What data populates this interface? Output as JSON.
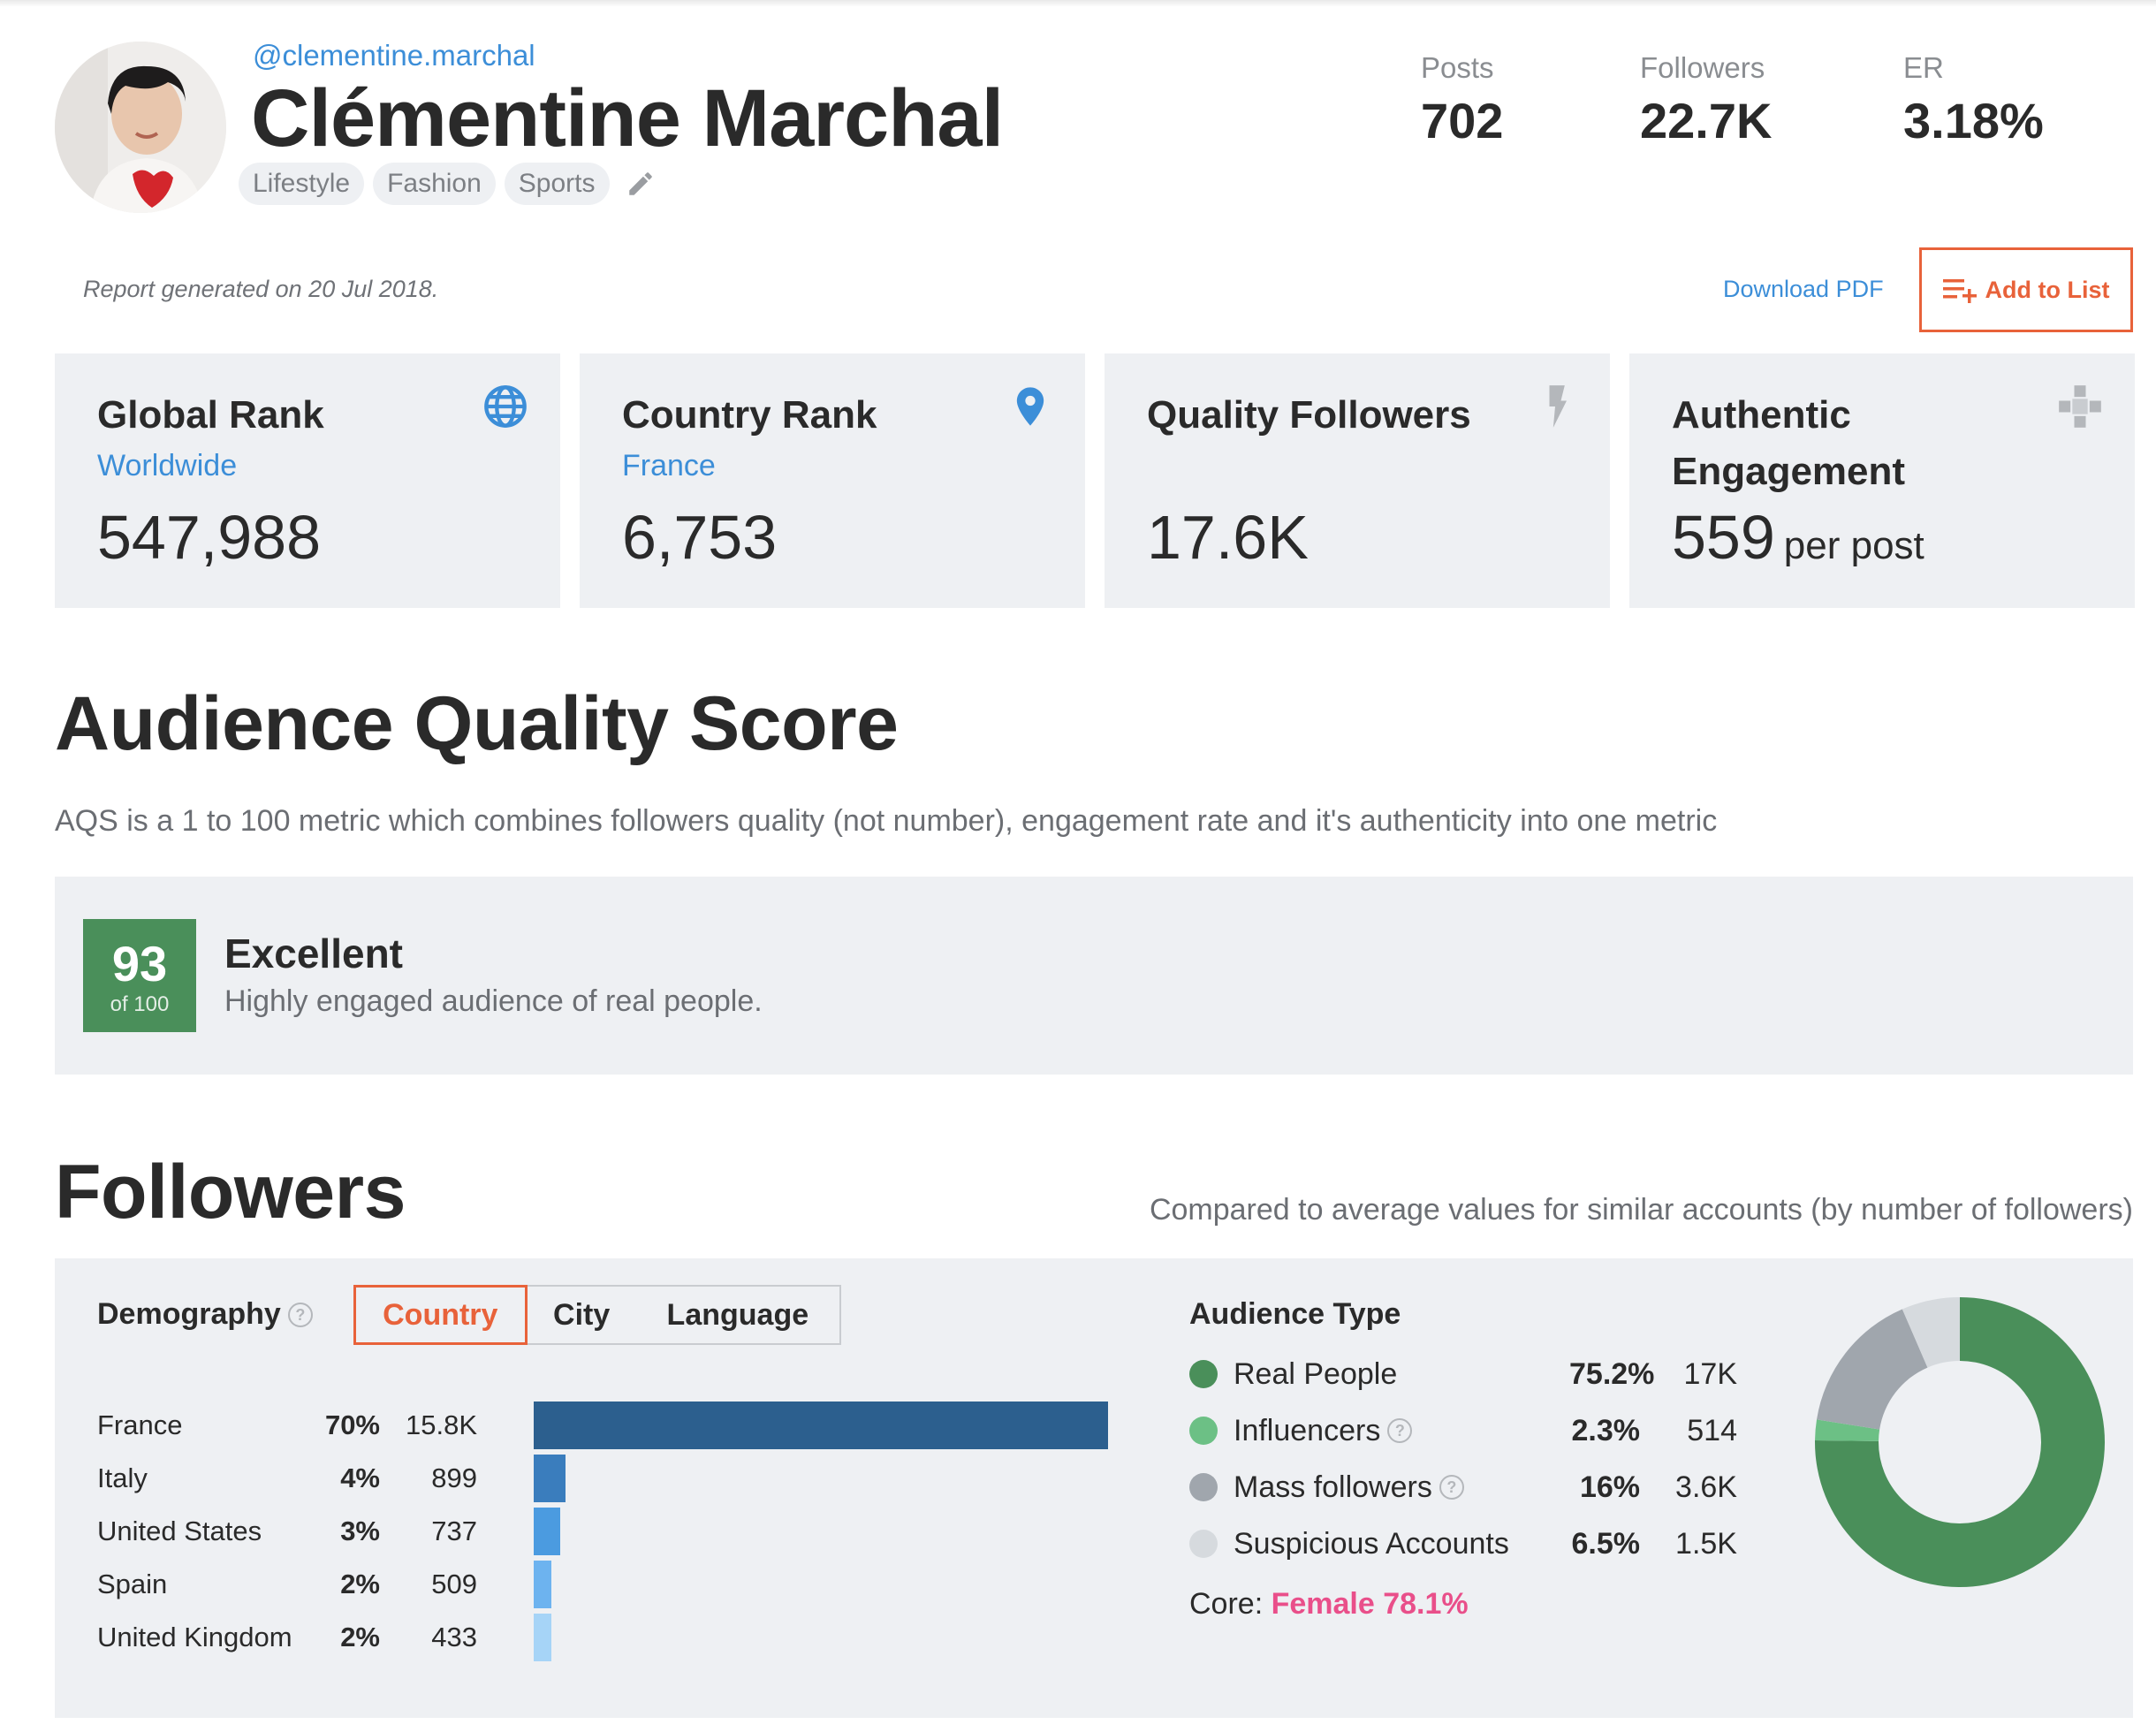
{
  "profile": {
    "handle": "@clementine.marchal",
    "name": "Clémentine Marchal",
    "tags": [
      "Lifestyle",
      "Fashion",
      "Sports"
    ]
  },
  "stats": [
    {
      "label": "Posts",
      "value": "702"
    },
    {
      "label": "Followers",
      "value": "22.7K"
    },
    {
      "label": "ER",
      "value": "3.18%"
    }
  ],
  "report": {
    "generated": "Report generated on 20 Jul 2018.",
    "download_label": "Download PDF",
    "add_to_list_label": "Add to List"
  },
  "cards": [
    {
      "title": "Global Rank",
      "sub": "Worldwide",
      "value": "547,988",
      "unit": "",
      "icon": "globe-icon"
    },
    {
      "title": "Country Rank",
      "sub": "France",
      "value": "6,753",
      "unit": "",
      "icon": "location-pin-icon"
    },
    {
      "title": "Quality Followers",
      "sub": "",
      "value": "17.6K",
      "unit": "",
      "icon": "lightning-icon"
    },
    {
      "title": "Authentic Engagement",
      "sub": "",
      "value": "559",
      "unit": "per post",
      "icon": "puzzle-icon"
    }
  ],
  "aqs": {
    "heading": "Audience Quality Score",
    "description": "AQS is a 1 to 100 metric which combines followers quality (not number), engagement rate and it's authenticity into one metric",
    "score": "93",
    "score_of": "of 100",
    "label": "Excellent",
    "text": "Highly engaged audience of real people."
  },
  "followers": {
    "heading": "Followers",
    "compared": "Compared to average values for similar accounts (by number of followers)",
    "demography_label": "Demography",
    "tabs": [
      "Country",
      "City",
      "Language"
    ],
    "countries": [
      {
        "name": "France",
        "pct": "70%",
        "count": "15.8K",
        "share": 70,
        "color": "#2c5f8e"
      },
      {
        "name": "Italy",
        "pct": "4%",
        "count": "899",
        "share": 4,
        "color": "#3a7dbd"
      },
      {
        "name": "United States",
        "pct": "3%",
        "count": "737",
        "share": 3,
        "color": "#4b9be0"
      },
      {
        "name": "Spain",
        "pct": "2%",
        "count": "509",
        "share": 2,
        "color": "#6db3ef"
      },
      {
        "name": "United Kingdom",
        "pct": "2%",
        "count": "433",
        "share": 2,
        "color": "#a6d4f7"
      }
    ],
    "audience_title": "Audience Type",
    "audience": [
      {
        "name": "Real People",
        "pct": "75.2%",
        "count": "17K",
        "share": 75.2,
        "color": "#4a8f5a",
        "help": false
      },
      {
        "name": "Influencers",
        "pct": "2.3%",
        "count": "514",
        "share": 2.3,
        "color": "#6cc085",
        "help": true
      },
      {
        "name": "Mass followers",
        "pct": "16%",
        "count": "3.6K",
        "share": 16,
        "color": "#a0a6ad",
        "help": true
      },
      {
        "name": "Suspicious Accounts",
        "pct": "6.5%",
        "count": "1.5K",
        "share": 6.5,
        "color": "#d6dade",
        "help": false
      }
    ],
    "core_label": "Core:",
    "core_value": "Female 78.1%"
  },
  "colors": {
    "accent": "#e8623a",
    "link": "#3c8ed8",
    "score_bg": "#4a8f5a",
    "card_bg": "#eef0f3",
    "pink": "#e94f8a"
  }
}
